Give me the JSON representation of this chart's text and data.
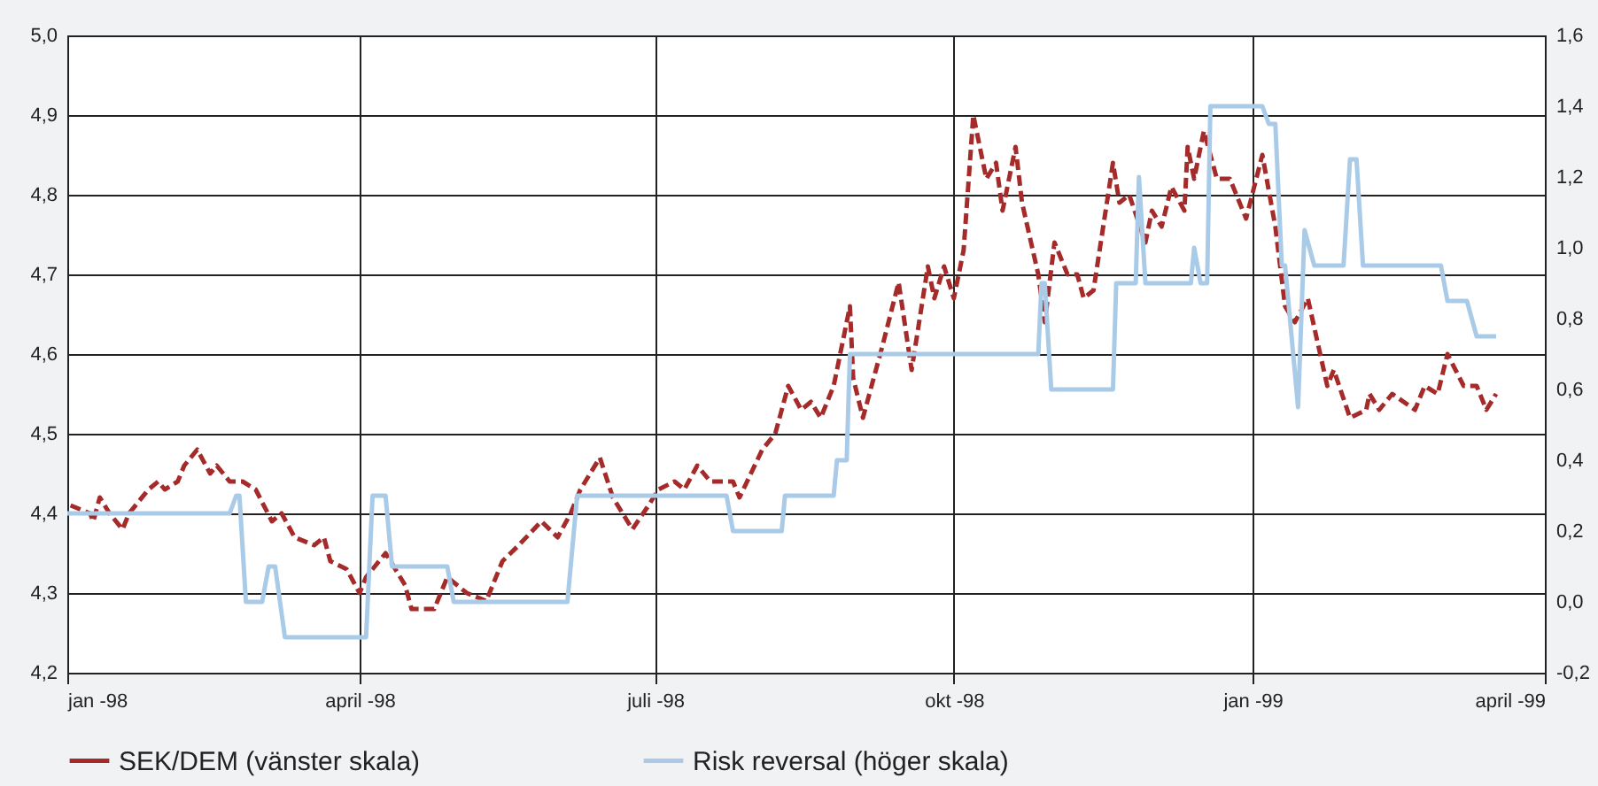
{
  "chart_data": {
    "type": "line",
    "xlim": [
      "1998-01-01",
      "1999-04-01"
    ],
    "xticks": [
      {
        "value": "1998-01-01",
        "label": "jan -98"
      },
      {
        "value": "1998-04-01",
        "label": "april -98"
      },
      {
        "value": "1998-07-01",
        "label": "juli -98"
      },
      {
        "value": "1998-10-01",
        "label": "okt -98"
      },
      {
        "value": "1999-01-01",
        "label": "jan -99"
      },
      {
        "value": "1999-04-01",
        "label": "april -99"
      }
    ],
    "ylim": [
      4.2,
      5.0
    ],
    "yticks": [
      {
        "value": 4.2,
        "label": "4,2"
      },
      {
        "value": 4.3,
        "label": "4,3"
      },
      {
        "value": 4.4,
        "label": "4,4"
      },
      {
        "value": 4.5,
        "label": "4,5"
      },
      {
        "value": 4.6,
        "label": "4,6"
      },
      {
        "value": 4.7,
        "label": "4,7"
      },
      {
        "value": 4.8,
        "label": "4,8"
      },
      {
        "value": 4.9,
        "label": "4,9"
      },
      {
        "value": 5.0,
        "label": "5,0"
      }
    ],
    "y2lim": [
      -0.2,
      1.6
    ],
    "y2ticks": [
      {
        "value": -0.2,
        "label": "-0,2"
      },
      {
        "value": 0,
        "label": "0,0"
      },
      {
        "value": 0.2,
        "label": "0,2"
      },
      {
        "value": 0.4,
        "label": "0,4"
      },
      {
        "value": 0.6,
        "label": "0,6"
      },
      {
        "value": 0.8,
        "label": "0,8"
      },
      {
        "value": 1.0,
        "label": "1,0"
      },
      {
        "value": 1.2,
        "label": "1,2"
      },
      {
        "value": 1.4,
        "label": "1,4"
      },
      {
        "value": 1.6,
        "label": "1,6"
      }
    ],
    "grid": true,
    "legend": "bottom",
    "series": [
      {
        "name": "SEK/DEM (vänster skala)",
        "color": "#a52a2a",
        "line_style": "dashed",
        "x": [
          "1998-01-02",
          "1998-01-08",
          "1998-01-09",
          "1998-01-11",
          "1998-01-14",
          "1998-01-18",
          "1998-01-20",
          "1998-01-26",
          "1998-01-29",
          "1998-01-31",
          "1998-02-04",
          "1998-02-06",
          "1998-02-08",
          "1998-02-10",
          "1998-02-14",
          "1998-02-16",
          "1998-02-20",
          "1998-02-24",
          "1998-02-28",
          "1998-03-05",
          "1998-03-08",
          "1998-03-12",
          "1998-03-18",
          "1998-03-21",
          "1998-03-23",
          "1998-03-28",
          "1998-04-01",
          "1998-04-03",
          "1998-04-07",
          "1998-04-09",
          "1998-04-12",
          "1998-04-15",
          "1998-04-17",
          "1998-04-24",
          "1998-04-28",
          "1998-05-04",
          "1998-05-10",
          "1998-05-15",
          "1998-05-20",
          "1998-05-27",
          "1998-06-01",
          "1998-06-05",
          "1998-06-08",
          "1998-06-14",
          "1998-06-18",
          "1998-06-24",
          "1998-06-29",
          "1998-07-02",
          "1998-07-07",
          "1998-07-10",
          "1998-07-14",
          "1998-07-18",
          "1998-07-25",
          "1998-07-27",
          "1998-08-03",
          "1998-08-07",
          "1998-08-11",
          "1998-08-15",
          "1998-08-18",
          "1998-08-21",
          "1998-08-25",
          "1998-08-30",
          "1998-08-31",
          "1998-09-03",
          "1998-09-09",
          "1998-09-14",
          "1998-09-18",
          "1998-09-23",
          "1998-09-25",
          "1998-09-28",
          "1998-10-01",
          "1998-10-04",
          "1998-10-07",
          "1998-10-11",
          "1998-10-14",
          "1998-10-16",
          "1998-10-20",
          "1998-10-22",
          "1998-10-27",
          "1998-10-29",
          "1998-11-01",
          "1998-11-05",
          "1998-11-08",
          "1998-11-10",
          "1998-11-13",
          "1998-11-19",
          "1998-11-21",
          "1998-11-24",
          "1998-11-29",
          "1998-12-01",
          "1998-12-04",
          "1998-12-07",
          "1998-12-11",
          "1998-12-12",
          "1998-12-14",
          "1998-12-17",
          "1998-12-21",
          "1998-12-25",
          "1998-12-30",
          "1999-01-04",
          "1999-01-08",
          "1999-01-11",
          "1999-01-14",
          "1999-01-18",
          "1999-01-24",
          "1999-01-26",
          "1999-01-31",
          "1999-02-05",
          "1999-02-06",
          "1999-02-09",
          "1999-02-13",
          "1999-02-20",
          "1999-02-23",
          "1999-02-27",
          "1999-03-02",
          "1999-03-07",
          "1999-03-11",
          "1999-03-14",
          "1999-03-17"
        ],
        "values": [
          4.41,
          4.4,
          4.39,
          4.42,
          4.4,
          4.38,
          4.4,
          4.43,
          4.44,
          4.43,
          4.44,
          4.46,
          4.47,
          4.48,
          4.45,
          4.46,
          4.44,
          4.44,
          4.43,
          4.39,
          4.4,
          4.37,
          4.36,
          4.37,
          4.34,
          4.33,
          4.3,
          4.32,
          4.34,
          4.35,
          4.33,
          4.31,
          4.28,
          4.28,
          4.32,
          4.3,
          4.29,
          4.34,
          4.36,
          4.39,
          4.37,
          4.4,
          4.43,
          4.47,
          4.42,
          4.38,
          4.41,
          4.43,
          4.44,
          4.43,
          4.46,
          4.44,
          4.44,
          4.42,
          4.48,
          4.5,
          4.56,
          4.53,
          4.54,
          4.52,
          4.56,
          4.66,
          4.57,
          4.52,
          4.61,
          4.69,
          4.58,
          4.71,
          4.67,
          4.71,
          4.67,
          4.73,
          4.9,
          4.82,
          4.84,
          4.78,
          4.86,
          4.79,
          4.7,
          4.64,
          4.74,
          4.7,
          4.7,
          4.67,
          4.68,
          4.84,
          4.79,
          4.8,
          4.74,
          4.78,
          4.76,
          4.81,
          4.78,
          4.86,
          4.82,
          4.88,
          4.82,
          4.82,
          4.77,
          4.85,
          4.76,
          4.66,
          4.64,
          4.67,
          4.56,
          4.58,
          4.52,
          4.53,
          4.55,
          4.53,
          4.55,
          4.53,
          4.56,
          4.55,
          4.6,
          4.56,
          4.56,
          4.53,
          4.55
        ]
      },
      {
        "name": "Risk reversal (höger skala)",
        "color": "#a9cbe8",
        "axis": "y2",
        "x": [
          "1998-01-01",
          "1998-02-20",
          "1998-02-22",
          "1998-02-23",
          "1998-02-25",
          "1998-03-02",
          "1998-03-04",
          "1998-03-06",
          "1998-03-09",
          "1998-04-03",
          "1998-04-05",
          "1998-04-09",
          "1998-04-11",
          "1998-04-28",
          "1998-04-30",
          "1998-06-04",
          "1998-06-07",
          "1998-07-23",
          "1998-07-25",
          "1998-08-09",
          "1998-08-10",
          "1998-08-25",
          "1998-08-26",
          "1998-08-29",
          "1998-08-30",
          "1998-10-27",
          "1998-10-28",
          "1998-10-29",
          "1998-10-31",
          "1998-11-19",
          "1998-11-20",
          "1998-11-26",
          "1998-11-27",
          "1998-11-29",
          "1998-12-13",
          "1998-12-14",
          "1998-12-16",
          "1998-12-18",
          "1998-12-19",
          "1999-01-04",
          "1999-01-06",
          "1999-01-08",
          "1999-01-10",
          "1999-01-11",
          "1999-01-15",
          "1999-01-17",
          "1999-01-20",
          "1999-01-29",
          "1999-01-31",
          "1999-02-02",
          "1999-02-04",
          "1999-02-28",
          "1999-03-02",
          "1999-03-08",
          "1999-03-11",
          "1999-03-17"
        ],
        "values": [
          0.25,
          0.25,
          0.3,
          0.3,
          0.0,
          0.0,
          0.1,
          0.1,
          -0.1,
          -0.1,
          0.3,
          0.3,
          0.1,
          0.1,
          0.0,
          0.0,
          0.3,
          0.3,
          0.2,
          0.2,
          0.3,
          0.3,
          0.4,
          0.4,
          0.7,
          0.7,
          0.9,
          0.9,
          0.6,
          0.6,
          0.9,
          0.9,
          1.2,
          0.9,
          0.9,
          1.0,
          0.9,
          0.9,
          1.4,
          1.4,
          1.35,
          1.35,
          0.95,
          0.95,
          0.55,
          1.05,
          0.95,
          0.95,
          1.25,
          1.25,
          0.95,
          0.95,
          0.85,
          0.85,
          0.75,
          0.75
        ]
      }
    ]
  }
}
